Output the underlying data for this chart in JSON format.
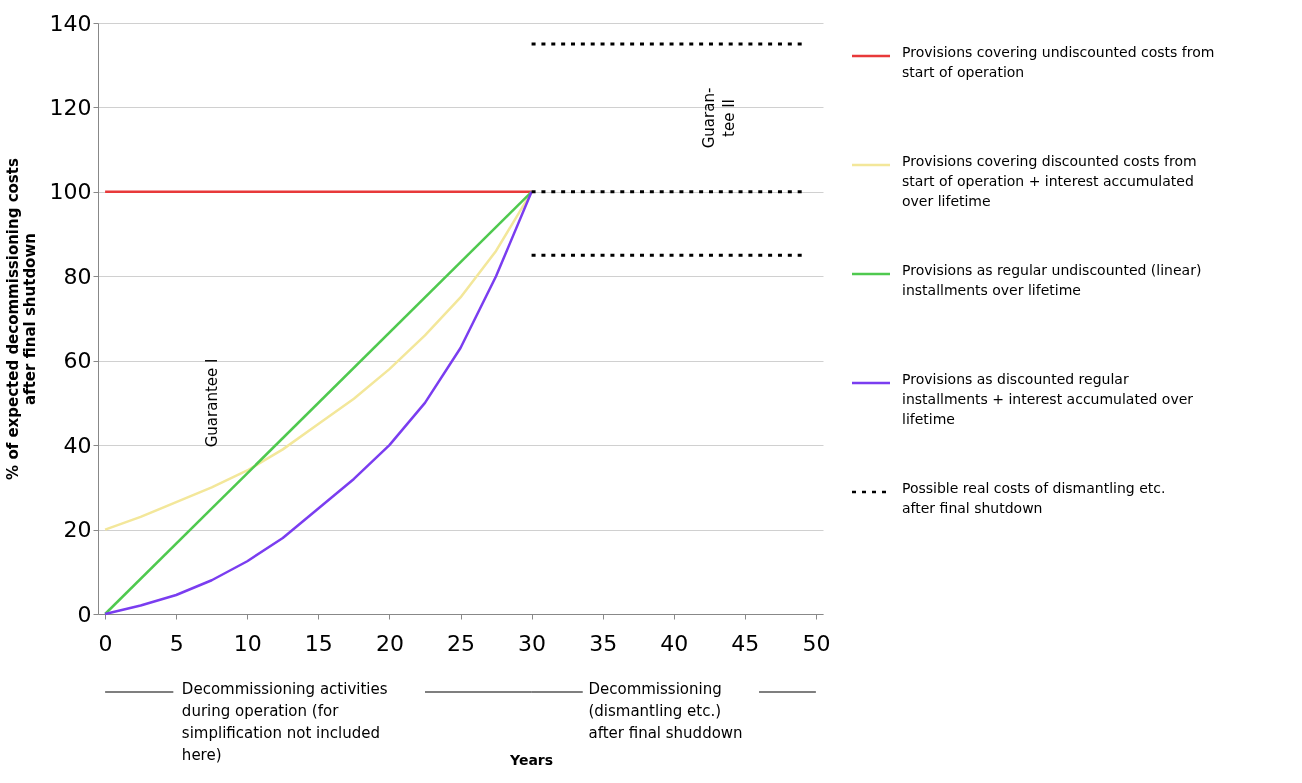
{
  "chart_data": {
    "type": "line",
    "ylabel": "% of expected decommissioning costs after final shutdown",
    "x": [
      0,
      2.5,
      5,
      7.5,
      10,
      12.5,
      15,
      17.5,
      20,
      22.5,
      25,
      27.5,
      30
    ],
    "xlim": [
      -0.5,
      50.5
    ],
    "xticks": [
      0,
      5,
      10,
      15,
      20,
      25,
      30,
      35,
      40,
      45,
      50
    ],
    "ylim": [
      0,
      140
    ],
    "yticks": [
      0,
      20,
      40,
      60,
      80,
      100,
      120,
      140
    ],
    "grid": "y",
    "legend": "right",
    "series": [
      {
        "name": "Provisions covering undiscounted costs from start of operation",
        "color": "#e8393a",
        "x": [
          0,
          30
        ],
        "values": [
          100,
          100
        ]
      },
      {
        "name": "Provisions covering discounted costs from start of operation + interest accumulated over lifetime",
        "color": "#f3e79a",
        "values": [
          20,
          23,
          26.5,
          30,
          34,
          39,
          45,
          51,
          58,
          66,
          75,
          86,
          100
        ]
      },
      {
        "name": "Provisions as regular undiscounted (linear) installments over lifetime",
        "color": "#4fc94f",
        "x": [
          0,
          30
        ],
        "values": [
          0,
          100
        ]
      },
      {
        "name": "Provisions as discounted regular installments + interest accumulated over lifetime",
        "color": "#7a3df0",
        "values": [
          0,
          2,
          4.5,
          8,
          12.5,
          18,
          25,
          32,
          40,
          50,
          63,
          80,
          100
        ]
      },
      {
        "name": "Possible real costs of dismantling etc. after final shutdown",
        "color": "#000000",
        "line_style": "dotted",
        "x": [
          30,
          49
        ],
        "values": [
          135,
          135
        ]
      },
      {
        "color": "#000000",
        "line_style": "dotted",
        "x": [
          30,
          49
        ],
        "values": [
          100,
          100
        ]
      },
      {
        "color": "#000000",
        "line_style": "dotted",
        "x": [
          30,
          49
        ],
        "values": [
          85,
          85
        ]
      }
    ],
    "annotations": [
      "Guarantee I",
      "Guaran-\ntee II",
      "Decommissioning activities during operation (for simplification not included here)",
      "Decommissioning (dismantling etc.) after final shuddown",
      "Years"
    ]
  }
}
